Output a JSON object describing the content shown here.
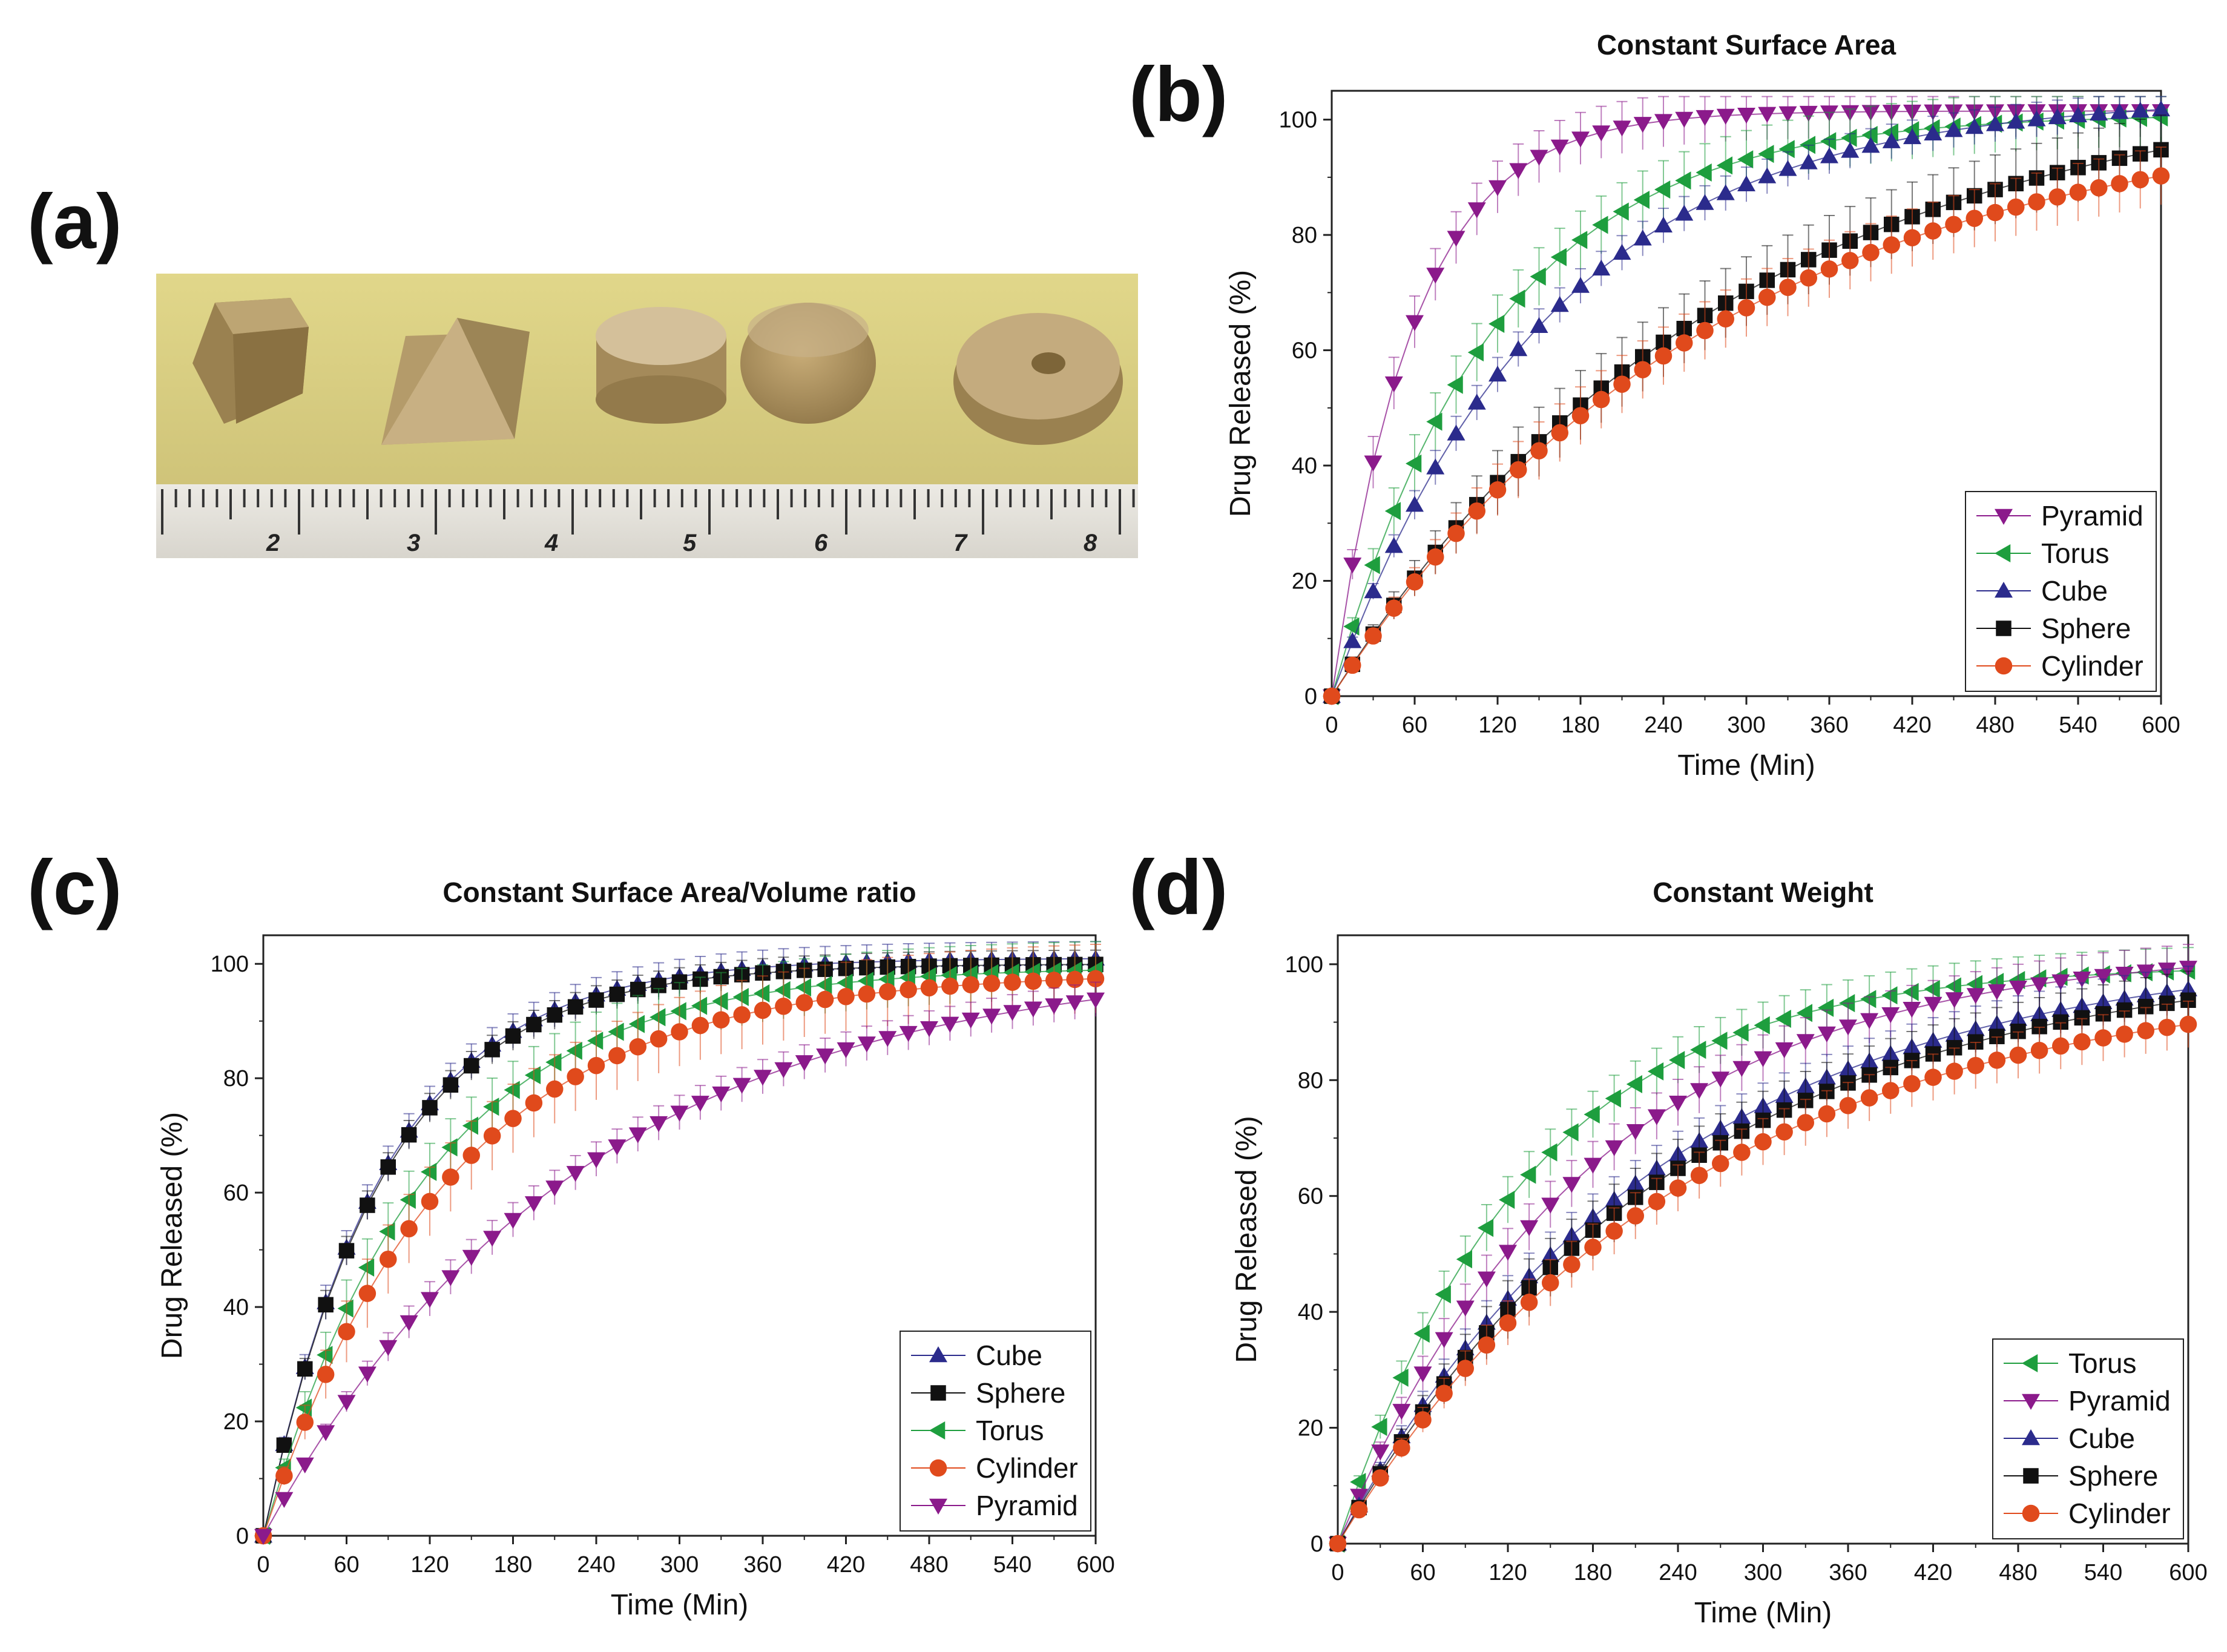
{
  "panels": {
    "a": {
      "label": "(a)",
      "ruler_numbers": [
        "2",
        "3",
        "4",
        "5",
        "6",
        "7",
        "8"
      ]
    },
    "b": {
      "label": "(b)"
    },
    "c": {
      "label": "(c)"
    },
    "d": {
      "label": "(d)"
    }
  },
  "colors": {
    "Pyramid": "#8b1a8b",
    "Torus": "#1e9e3e",
    "Cube": "#2b2b8c",
    "Sphere": "#111111",
    "Cylinder": "#e04a1c"
  },
  "chart_data": [
    {
      "panel": "b",
      "type": "line",
      "title": "Constant Surface Area",
      "xlabel": "Time (Min)",
      "ylabel": "Drug Released (%)",
      "xlim": [
        0,
        600
      ],
      "ylim": [
        0,
        105
      ],
      "xticks": [
        0,
        60,
        120,
        180,
        240,
        300,
        360,
        420,
        480,
        540,
        600
      ],
      "yticks": [
        0,
        20,
        40,
        60,
        80,
        100
      ],
      "legend_position": "bottom-right",
      "x_step": 15,
      "series": [
        {
          "name": "Pyramid",
          "marker": "triangle-down",
          "plateau": 101.5,
          "k": 0.017,
          "err": 4.5
        },
        {
          "name": "Torus",
          "marker": "triangle-left",
          "plateau": 101,
          "k": 0.0085,
          "err": 5
        },
        {
          "name": "Cube",
          "marker": "triangle-up",
          "plateau": 104,
          "k": 0.0064,
          "err": 3
        },
        {
          "name": "Sphere",
          "marker": "square",
          "plateau": 108,
          "k": 0.0035,
          "err": 6
        },
        {
          "name": "Cylinder",
          "marker": "circle",
          "plateau": 102,
          "k": 0.0036,
          "err": 5
        }
      ]
    },
    {
      "panel": "c",
      "type": "line",
      "title": "Constant Surface Area/Volume ratio",
      "xlabel": "Time (Min)",
      "ylabel": "Drug Released (%)",
      "xlim": [
        0,
        600
      ],
      "ylim": [
        0,
        105
      ],
      "xticks": [
        0,
        60,
        120,
        180,
        240,
        300,
        360,
        420,
        480,
        540,
        600
      ],
      "yticks": [
        0,
        20,
        40,
        60,
        80,
        100
      ],
      "legend_position": "bottom-right",
      "x_step": 15,
      "series": [
        {
          "name": "Cube",
          "marker": "triangle-up",
          "plateau": 101,
          "k": 0.0115,
          "err": 3
        },
        {
          "name": "Sphere",
          "marker": "square",
          "plateau": 100,
          "k": 0.0115,
          "err": 2.5
        },
        {
          "name": "Torus",
          "marker": "triangle-left",
          "plateau": 99.5,
          "k": 0.0085,
          "err": 5
        },
        {
          "name": "Cylinder",
          "marker": "circle",
          "plateau": 98.5,
          "k": 0.0075,
          "err": 6
        },
        {
          "name": "Pyramid",
          "marker": "triangle-down",
          "plateau": 101,
          "k": 0.0044,
          "err": 3
        }
      ]
    },
    {
      "panel": "d",
      "type": "line",
      "title": "Constant Weight",
      "xlabel": "Time (Min)",
      "ylabel": "Drug Released (%)",
      "xlim": [
        0,
        600
      ],
      "ylim": [
        0,
        105
      ],
      "xticks": [
        0,
        60,
        120,
        180,
        240,
        300,
        360,
        420,
        480,
        540,
        600
      ],
      "yticks": [
        0,
        20,
        40,
        60,
        80,
        100
      ],
      "legend_position": "bottom-right",
      "x_step": 15,
      "series": [
        {
          "name": "Torus",
          "marker": "triangle-left",
          "plateau": 100,
          "k": 0.0075,
          "err": 4
        },
        {
          "name": "Pyramid",
          "marker": "triangle-down",
          "plateau": 103,
          "k": 0.0056,
          "err": 4
        },
        {
          "name": "Cube",
          "marker": "triangle-up",
          "plateau": 103,
          "k": 0.0044,
          "err": 4
        },
        {
          "name": "Sphere",
          "marker": "square",
          "plateau": 102,
          "k": 0.0042,
          "err": 5
        },
        {
          "name": "Cylinder",
          "marker": "circle",
          "plateau": 98,
          "k": 0.0041,
          "err": 4
        }
      ]
    }
  ]
}
